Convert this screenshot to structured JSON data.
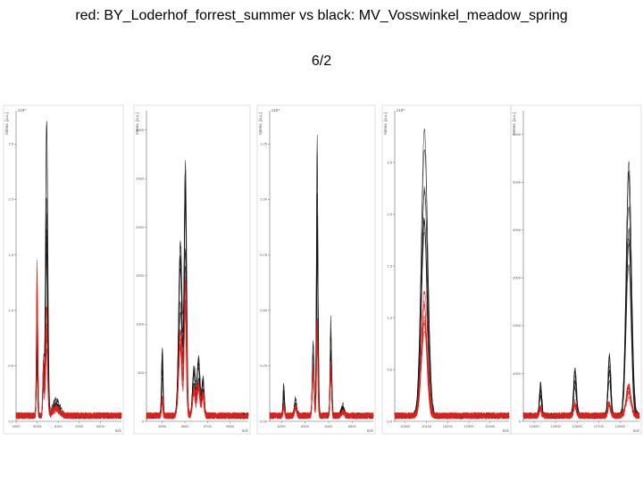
{
  "slide": {
    "title": "red: BY_Loderhof_forrest_summer vs black: MV_Vosswinkel_meadow_spring",
    "subtitle": "6/2"
  },
  "colors": {
    "red": "#e0201c",
    "black": "#111111",
    "axis": "#666666",
    "frame": "#cccccc"
  },
  "chart_data": [
    {
      "type": "line",
      "ylabel": "Intens. [a.u.]",
      "xlabel": "m/z",
      "y_scale_label": "x10⁴",
      "xlim": [
        4900,
        5400
      ],
      "ylim": [
        0,
        2.8
      ],
      "yticks": [
        "0.0",
        "0.5",
        "1.0",
        "1.5",
        "2.0",
        "2.5"
      ],
      "xticks": [
        "4900",
        "5000",
        "5100",
        "5200",
        "5300"
      ],
      "peaks": [
        {
          "x": 5000,
          "black": 0.85,
          "red": 1.4,
          "w": 5
        },
        {
          "x": 5045,
          "black": 2.7,
          "red": 1.0,
          "w": 8
        },
        {
          "x": 5030,
          "black": 0.5,
          "red": 0.5,
          "w": 5
        },
        {
          "x": 5090,
          "black": 0.15,
          "red": 0.08,
          "w": 25
        }
      ]
    },
    {
      "type": "line",
      "ylabel": "Intens. [a.u.]",
      "xlabel": "m/z",
      "xlim": [
        5430,
        5880
      ],
      "ylim": [
        0,
        3200
      ],
      "yticks": [
        "0",
        "500",
        "1000",
        "1500",
        "2000",
        "2500",
        "3000"
      ],
      "xticks": [
        "5500",
        "5600",
        "5700",
        "5800"
      ],
      "peaks": [
        {
          "x": 5500,
          "black": 700,
          "red": 200,
          "w": 5
        },
        {
          "x": 5580,
          "black": 1800,
          "red": 900,
          "w": 12
        },
        {
          "x": 5602,
          "black": 2600,
          "red": 1400,
          "w": 8
        },
        {
          "x": 5640,
          "black": 500,
          "red": 300,
          "w": 10
        },
        {
          "x": 5660,
          "black": 600,
          "red": 350,
          "w": 10
        },
        {
          "x": 5680,
          "black": 400,
          "red": 250,
          "w": 8
        }
      ]
    },
    {
      "type": "line",
      "ylabel": "Intens. [a.u.]",
      "xlabel": "m/z",
      "y_scale_label": "x10⁴",
      "xlim": [
        6150,
        6590
      ],
      "ylim": [
        0,
        1.4
      ],
      "yticks": [
        "0.00",
        "0.25",
        "0.50",
        "0.75",
        "1.00",
        "1.25"
      ],
      "xticks": [
        "6200",
        "6300",
        "6400",
        "6500"
      ],
      "peaks": [
        {
          "x": 6210,
          "black": 0.15,
          "red": 0.05,
          "w": 5
        },
        {
          "x": 6260,
          "black": 0.08,
          "red": 0.04,
          "w": 8
        },
        {
          "x": 6335,
          "black": 0.35,
          "red": 0.25,
          "w": 6
        },
        {
          "x": 6352,
          "black": 1.3,
          "red": 0.45,
          "w": 5
        },
        {
          "x": 6410,
          "black": 0.45,
          "red": 0.25,
          "w": 5
        },
        {
          "x": 6460,
          "black": 0.05,
          "red": 0.02,
          "w": 10
        }
      ]
    },
    {
      "type": "line",
      "ylabel": "Intens. [a.u.]",
      "xlabel": "m/z",
      "y_scale_label": "x10⁴",
      "xlim": [
        9950,
        10490
      ],
      "ylim": [
        0,
        3.0
      ],
      "yticks": [
        "0.0",
        "0.5",
        "1.0",
        "1.5",
        "2.0",
        "2.5"
      ],
      "xticks": [
        "10000",
        "10100",
        "10200",
        "10300",
        "10400"
      ],
      "peaks": [
        {
          "x": 10090,
          "black": 2.75,
          "red": 1.2,
          "w": 22
        }
      ]
    },
    {
      "type": "line",
      "ylabel": "Intens. [a.u.]",
      "xlabel": "m/z",
      "xlim": [
        12350,
        12890
      ],
      "ylim": [
        0,
        6500
      ],
      "yticks": [
        "0",
        "1000",
        "2000",
        "3000",
        "4000",
        "5000",
        "6000"
      ],
      "xticks": [
        "12400",
        "12500",
        "12600",
        "12700",
        "12800"
      ],
      "peaks": [
        {
          "x": 12430,
          "black": 700,
          "red": 200,
          "w": 8
        },
        {
          "x": 12590,
          "black": 1000,
          "red": 300,
          "w": 10
        },
        {
          "x": 12750,
          "black": 1300,
          "red": 300,
          "w": 10
        },
        {
          "x": 12840,
          "black": 5300,
          "red": 700,
          "w": 18
        }
      ]
    }
  ]
}
